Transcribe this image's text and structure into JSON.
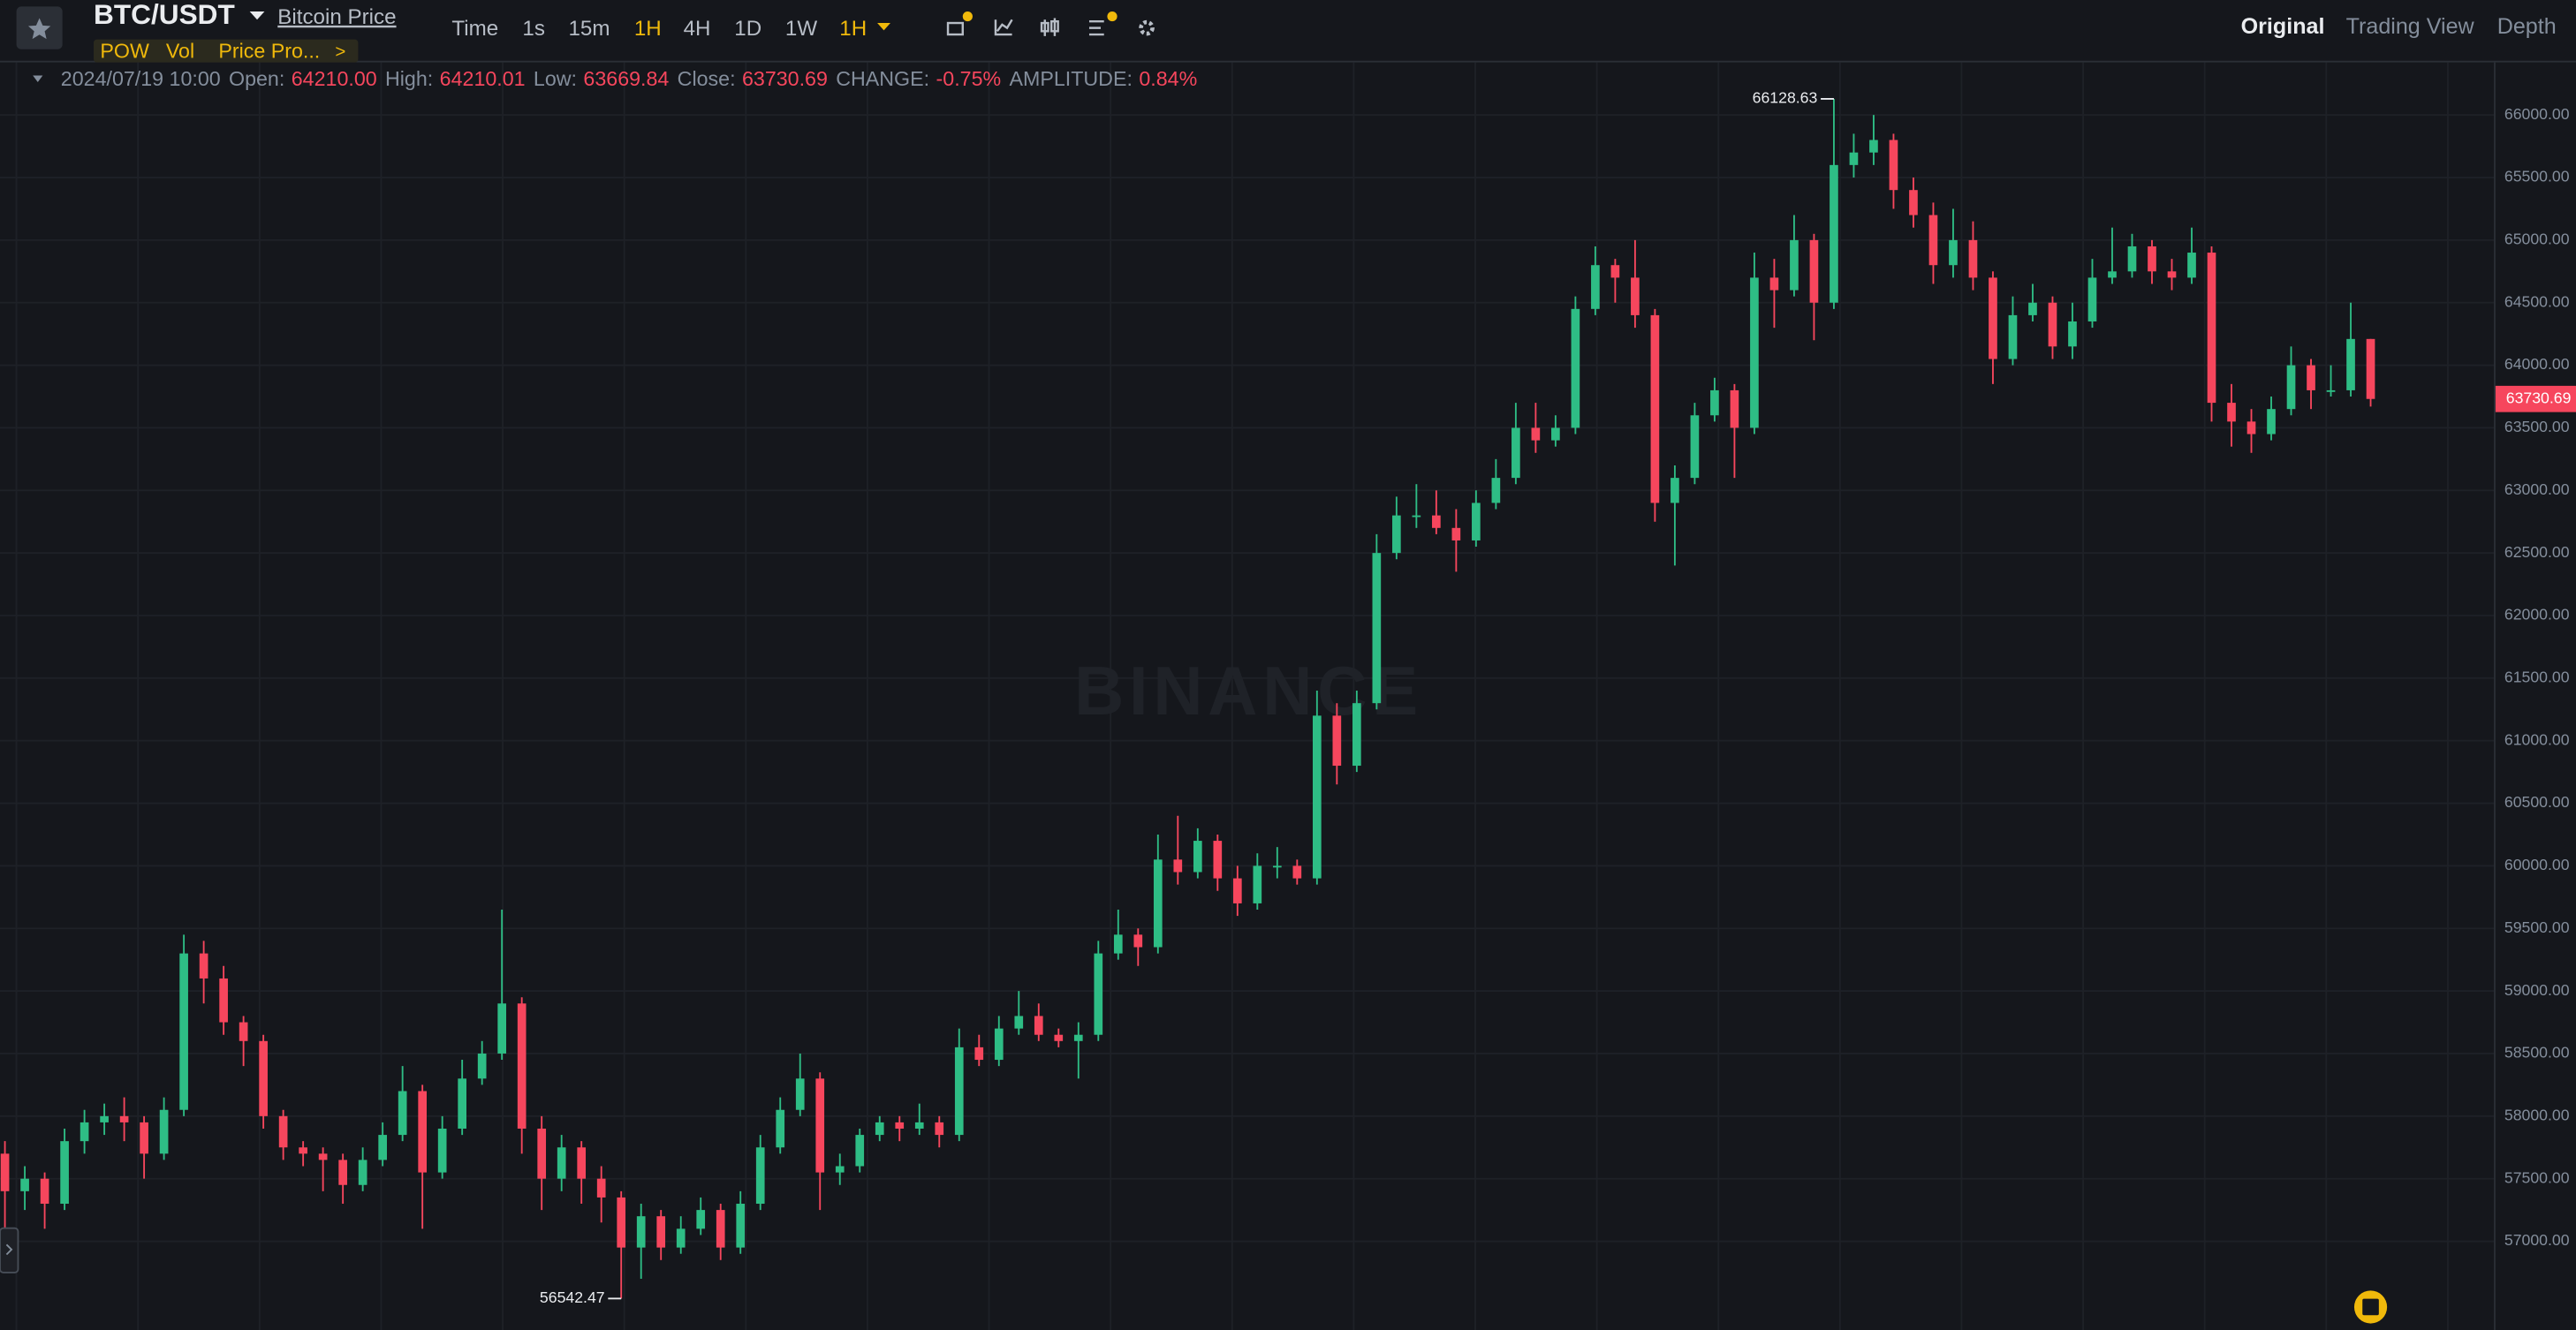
{
  "header": {
    "symbol": "BTC/USDT",
    "link": "Bitcoin Price",
    "intervals": [
      "Time",
      "1s",
      "15m",
      "1H",
      "4H",
      "1D",
      "1W"
    ],
    "active_interval": 3,
    "selected_interval": "1H",
    "views": [
      "Original",
      "Trading View",
      "Depth"
    ],
    "indicators": [
      "POW",
      "Vol",
      "Price Pro..."
    ],
    "more": ">"
  },
  "info": {
    "time": "2024/07/19 10:00",
    "items": [
      {
        "label": "Open:",
        "value": "64210.00"
      },
      {
        "label": "High:",
        "value": "64210.01"
      },
      {
        "label": "Low:",
        "value": "63669.84"
      },
      {
        "label": "Close:",
        "value": "63730.69"
      },
      {
        "label": "CHANGE:",
        "value": "-0.75%"
      },
      {
        "label": "AMPLITUDE:",
        "value": "0.84%"
      }
    ]
  },
  "watermark": "BINANCE",
  "chart_data": {
    "type": "candlestick",
    "colors": {
      "up": "#2ebd85",
      "down": "#f6465d"
    },
    "grid": true,
    "high_label": "66128.63",
    "low_label": "56542.47",
    "last_price_label": "63730.69",
    "ylim": [
      56291,
      66420
    ],
    "yticks": [
      {
        "value": 57000,
        "label": "57000.00"
      },
      {
        "value": 57500,
        "label": "57500.00"
      },
      {
        "value": 58000,
        "label": "58000.00"
      },
      {
        "value": 58500,
        "label": "58500.00"
      },
      {
        "value": 59000,
        "label": "59000.00"
      },
      {
        "value": 59500,
        "label": "59500.00"
      },
      {
        "value": 60000,
        "label": "60000.00"
      },
      {
        "value": 60500,
        "label": "60500.00"
      },
      {
        "value": 61000,
        "label": "61000.00"
      },
      {
        "value": 61500,
        "label": "61500.00"
      },
      {
        "value": 62000,
        "label": "62000.00"
      },
      {
        "value": 62500,
        "label": "62500.00"
      },
      {
        "value": 63000,
        "label": "63000.00"
      },
      {
        "value": 63500,
        "label": "63500.00"
      },
      {
        "value": 64000,
        "label": "64000.00"
      },
      {
        "value": 64500,
        "label": "64500.00"
      },
      {
        "value": 65000,
        "label": "65000.00"
      },
      {
        "value": 65500,
        "label": "65500.00"
      },
      {
        "value": 66000,
        "label": "66000.00"
      }
    ],
    "candles": [
      [
        57700,
        57800,
        56950,
        57400
      ],
      [
        57400,
        57600,
        57250,
        57500
      ],
      [
        57500,
        57550,
        57100,
        57300
      ],
      [
        57300,
        57900,
        57250,
        57800
      ],
      [
        57800,
        58050,
        57700,
        57950
      ],
      [
        57950,
        58100,
        57850,
        58000
      ],
      [
        58000,
        58150,
        57800,
        57950
      ],
      [
        57950,
        58000,
        57500,
        57700
      ],
      [
        57700,
        58150,
        57650,
        58050
      ],
      [
        58050,
        59450,
        58000,
        59300
      ],
      [
        59300,
        59400,
        58900,
        59100
      ],
      [
        59100,
        59200,
        58650,
        58750
      ],
      [
        58750,
        58800,
        58400,
        58600
      ],
      [
        58600,
        58650,
        57900,
        58000
      ],
      [
        58000,
        58050,
        57650,
        57750
      ],
      [
        57750,
        57800,
        57600,
        57700
      ],
      [
        57700,
        57750,
        57400,
        57650
      ],
      [
        57650,
        57700,
        57300,
        57450
      ],
      [
        57450,
        57750,
        57400,
        57650
      ],
      [
        57650,
        57950,
        57600,
        57850
      ],
      [
        57850,
        58400,
        57800,
        58200
      ],
      [
        58200,
        58250,
        57100,
        57550
      ],
      [
        57550,
        58000,
        57500,
        57900
      ],
      [
        57900,
        58450,
        57850,
        58300
      ],
      [
        58300,
        58600,
        58250,
        58500
      ],
      [
        58500,
        59650,
        58450,
        58900
      ],
      [
        58900,
        58950,
        57700,
        57900
      ],
      [
        57900,
        58000,
        57250,
        57500
      ],
      [
        57500,
        57850,
        57400,
        57750
      ],
      [
        57750,
        57800,
        57300,
        57500
      ],
      [
        57500,
        57600,
        57150,
        57350
      ],
      [
        57350,
        57400,
        56542.47,
        56950
      ],
      [
        56950,
        57300,
        56700,
        57200
      ],
      [
        57200,
        57250,
        56850,
        56950
      ],
      [
        56950,
        57200,
        56900,
        57100
      ],
      [
        57100,
        57350,
        57050,
        57250
      ],
      [
        57250,
        57300,
        56850,
        56950
      ],
      [
        56950,
        57400,
        56900,
        57300
      ],
      [
        57300,
        57850,
        57250,
        57750
      ],
      [
        57750,
        58150,
        57700,
        58050
      ],
      [
        58050,
        58500,
        58000,
        58300
      ],
      [
        58300,
        58350,
        57250,
        57550
      ],
      [
        57550,
        57700,
        57450,
        57600
      ],
      [
        57600,
        57900,
        57550,
        57850
      ],
      [
        57850,
        58000,
        57800,
        57950
      ],
      [
        57950,
        58000,
        57800,
        57900
      ],
      [
        57900,
        58100,
        57850,
        57950
      ],
      [
        57950,
        58000,
        57750,
        57850
      ],
      [
        57850,
        58700,
        57800,
        58550
      ],
      [
        58550,
        58650,
        58400,
        58450
      ],
      [
        58450,
        58800,
        58400,
        58700
      ],
      [
        58700,
        59000,
        58650,
        58800
      ],
      [
        58800,
        58900,
        58600,
        58650
      ],
      [
        58650,
        58700,
        58550,
        58600
      ],
      [
        58600,
        58750,
        58300,
        58650
      ],
      [
        58650,
        59400,
        58600,
        59300
      ],
      [
        59300,
        59650,
        59250,
        59450
      ],
      [
        59450,
        59500,
        59200,
        59350
      ],
      [
        59350,
        60250,
        59300,
        60050
      ],
      [
        60050,
        60400,
        59850,
        59950
      ],
      [
        59950,
        60300,
        59900,
        60200
      ],
      [
        60200,
        60250,
        59800,
        59900
      ],
      [
        59900,
        60000,
        59600,
        59700
      ],
      [
        59700,
        60100,
        59650,
        60000
      ],
      [
        60000,
        60150,
        59900,
        60000
      ],
      [
        60000,
        60050,
        59850,
        59900
      ],
      [
        59900,
        61400,
        59850,
        61200
      ],
      [
        61200,
        61300,
        60650,
        60800
      ],
      [
        60800,
        61400,
        60750,
        61300
      ],
      [
        61300,
        62650,
        61250,
        62500
      ],
      [
        62500,
        62950,
        62450,
        62800
      ],
      [
        62800,
        63050,
        62700,
        62800
      ],
      [
        62800,
        63000,
        62650,
        62700
      ],
      [
        62700,
        62850,
        62350,
        62600
      ],
      [
        62600,
        63000,
        62550,
        62900
      ],
      [
        62900,
        63250,
        62850,
        63100
      ],
      [
        63100,
        63700,
        63050,
        63500
      ],
      [
        63500,
        63700,
        63300,
        63400
      ],
      [
        63400,
        63600,
        63350,
        63500
      ],
      [
        63500,
        64550,
        63450,
        64450
      ],
      [
        64450,
        64950,
        64400,
        64800
      ],
      [
        64800,
        64850,
        64500,
        64700
      ],
      [
        64700,
        65000,
        64300,
        64400
      ],
      [
        64400,
        64450,
        62750,
        62900
      ],
      [
        62900,
        63200,
        62400,
        63100
      ],
      [
        63100,
        63700,
        63050,
        63600
      ],
      [
        63600,
        63900,
        63550,
        63800
      ],
      [
        63800,
        63850,
        63100,
        63500
      ],
      [
        63500,
        64900,
        63450,
        64700
      ],
      [
        64700,
        64850,
        64300,
        64600
      ],
      [
        64600,
        65200,
        64550,
        65000
      ],
      [
        65000,
        65050,
        64200,
        64500
      ],
      [
        64500,
        66128.63,
        64450,
        65600
      ],
      [
        65600,
        65850,
        65500,
        65700
      ],
      [
        65700,
        66000,
        65600,
        65800
      ],
      [
        65800,
        65850,
        65250,
        65400
      ],
      [
        65400,
        65500,
        65100,
        65200
      ],
      [
        65200,
        65300,
        64650,
        64800
      ],
      [
        64800,
        65250,
        64700,
        65000
      ],
      [
        65000,
        65150,
        64600,
        64700
      ],
      [
        64700,
        64750,
        63850,
        64050
      ],
      [
        64050,
        64550,
        64000,
        64400
      ],
      [
        64400,
        64650,
        64350,
        64500
      ],
      [
        64500,
        64550,
        64050,
        64150
      ],
      [
        64150,
        64500,
        64050,
        64350
      ],
      [
        64350,
        64850,
        64300,
        64700
      ],
      [
        64700,
        65100,
        64650,
        64750
      ],
      [
        64750,
        65050,
        64700,
        64950
      ],
      [
        64950,
        65000,
        64650,
        64750
      ],
      [
        64750,
        64850,
        64600,
        64700
      ],
      [
        64700,
        65100,
        64650,
        64900
      ],
      [
        64900,
        64950,
        63550,
        63700
      ],
      [
        63700,
        63850,
        63350,
        63550
      ],
      [
        63550,
        63650,
        63300,
        63450
      ],
      [
        63450,
        63750,
        63400,
        63650
      ],
      [
        63650,
        64150,
        63600,
        64000
      ],
      [
        64000,
        64050,
        63650,
        63800
      ],
      [
        63800,
        64000,
        63750,
        63800
      ],
      [
        63800,
        64500,
        63750,
        64210
      ],
      [
        64210.0,
        64210.01,
        63669.84,
        63730.69
      ]
    ]
  }
}
